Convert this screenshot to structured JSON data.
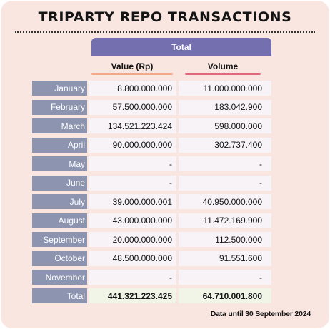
{
  "title": "TRIPARTY REPO TRANSACTIONS",
  "table": {
    "group_header": "Total",
    "columns": [
      "Value (Rp)",
      "Volume"
    ],
    "rows": [
      {
        "month": "January",
        "value": "8.800.000.000",
        "volume": "11.000.000.000"
      },
      {
        "month": "February",
        "value": "57.500.000.000",
        "volume": "183.042.900"
      },
      {
        "month": "March",
        "value": "134.521.223.424",
        "volume": "598.000.000"
      },
      {
        "month": "April",
        "value": "90.000.000.000",
        "volume": "302.737.400"
      },
      {
        "month": "May",
        "value": "-",
        "volume": "-"
      },
      {
        "month": "June",
        "value": "-",
        "volume": "-"
      },
      {
        "month": "July",
        "value": "39.000.000.001",
        "volume": "40.950.000.000"
      },
      {
        "month": "August",
        "value": "43.000.000.000",
        "volume": "11.472.169.900"
      },
      {
        "month": "September",
        "value": "20.000.000.000",
        "volume": "112.500.000"
      },
      {
        "month": "October",
        "value": "48.500.000.000",
        "volume": "91.551.600"
      },
      {
        "month": "November",
        "value": "-",
        "volume": "-"
      }
    ],
    "total": {
      "label": "Total",
      "value": "441.321.223.425",
      "volume": "64.710.001.800"
    }
  },
  "footnote": "Data until 30 September 2024",
  "colors": {
    "background": "#f9e6e0",
    "header_band": "#7470b0",
    "month_label": "#8c94b0",
    "cell": "#f7f3f7",
    "total_cell": "#f0f5e8",
    "value_underline": "#f2a98a",
    "volume_underline": "#e0687a"
  }
}
